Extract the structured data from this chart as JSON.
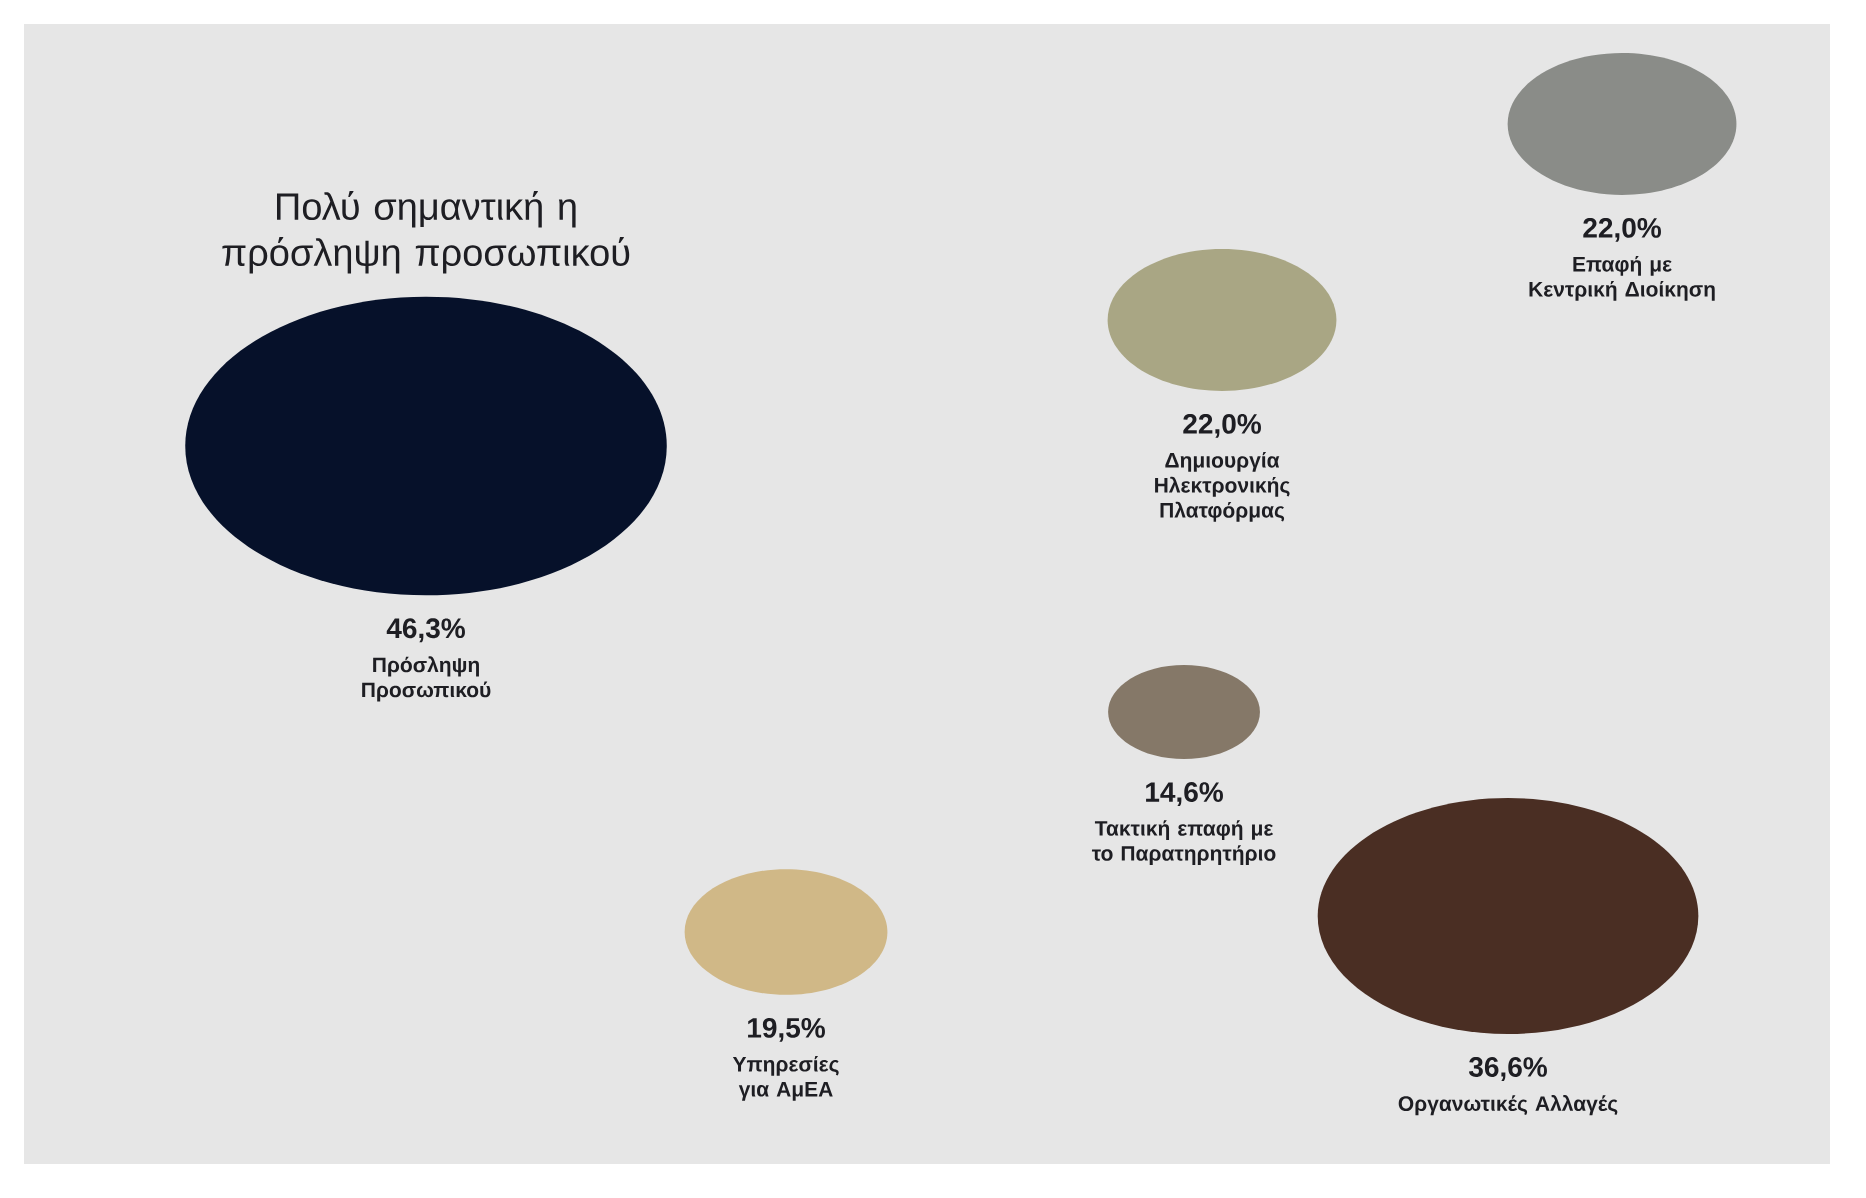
{
  "chart_data": {
    "type": "other",
    "title": "Πολύ σημαντική η πρόσληψη προσωπικού",
    "categories": [
      "Πρόσληψη Προσωπικού",
      "Επαφή με Κεντρική Διοίκηση",
      "Δημιουργία Ηλεκτρονικής Πλατφόρμας",
      "Τακτική επαφή με το Παρατηρητήριο",
      "Υπηρεσίες για ΑμΕΑ",
      "Οργανωτικές Αλλαγές"
    ],
    "values": [
      46.3,
      22.0,
      22.0,
      14.6,
      19.5,
      36.6
    ],
    "value_labels": [
      "46,3%",
      "22,0%",
      "22,0%",
      "14,6%",
      "19,5%",
      "36,6%"
    ],
    "colors": [
      "#06112a",
      "#8a8c88",
      "#a9a684",
      "#857868",
      "#d0b887",
      "#4a2e23"
    ]
  }
}
